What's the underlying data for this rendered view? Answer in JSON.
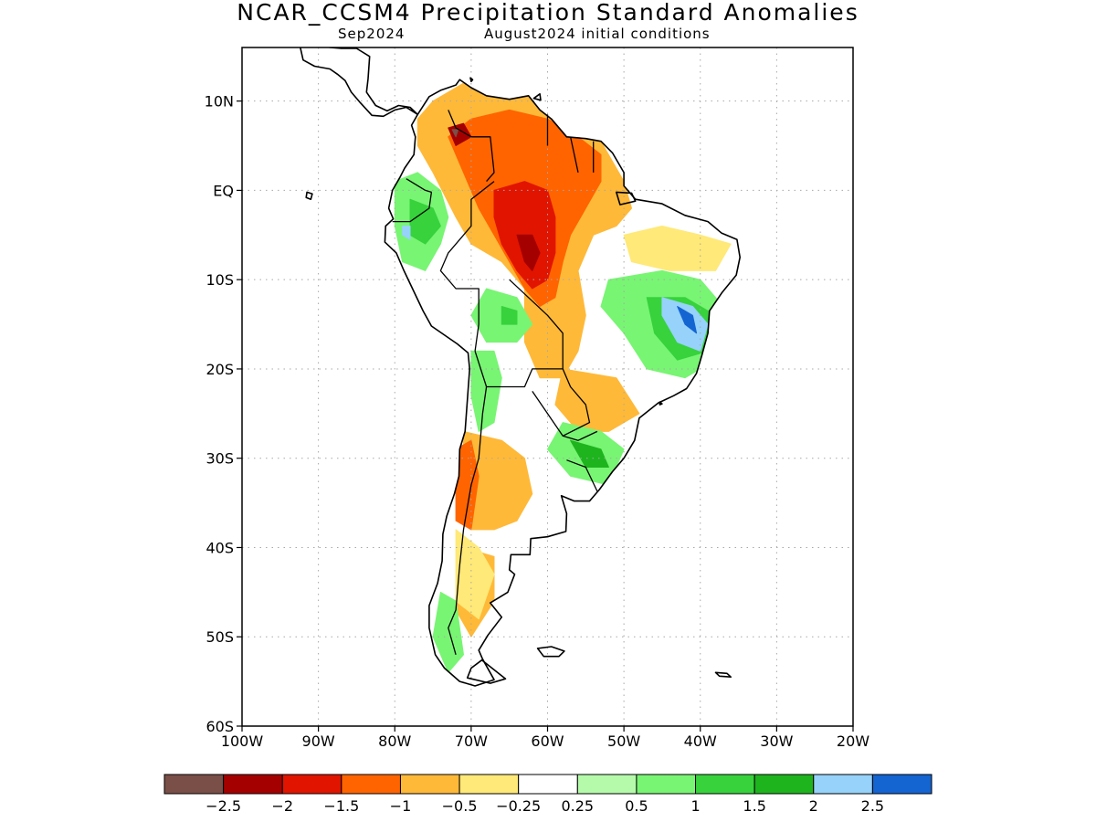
{
  "title": "NCAR_CCSM4 Precipitation Standard Anomalies",
  "subtitle": {
    "left": "Sep2024",
    "right": "August2024 initial conditions"
  },
  "map": {
    "lon_range": [
      -100,
      -20
    ],
    "lat_range": [
      -60,
      16
    ],
    "lat_labels": [
      {
        "lat": 10,
        "text": "10N"
      },
      {
        "lat": 0,
        "text": "EQ"
      },
      {
        "lat": -10,
        "text": "10S"
      },
      {
        "lat": -20,
        "text": "20S"
      },
      {
        "lat": -30,
        "text": "30S"
      },
      {
        "lat": -40,
        "text": "40S"
      },
      {
        "lat": -50,
        "text": "50S"
      },
      {
        "lat": -60,
        "text": "60S"
      }
    ],
    "lon_labels": [
      {
        "lon": -100,
        "text": "100W"
      },
      {
        "lon": -90,
        "text": "90W"
      },
      {
        "lon": -80,
        "text": "80W"
      },
      {
        "lon": -70,
        "text": "70W"
      },
      {
        "lon": -60,
        "text": "60W"
      },
      {
        "lon": -50,
        "text": "50W"
      },
      {
        "lon": -40,
        "text": "40W"
      },
      {
        "lon": -30,
        "text": "30W"
      },
      {
        "lon": -20,
        "text": "20W"
      }
    ],
    "anomaly_regions": [
      {
        "name": "northern-dry",
        "color": "#ffb938",
        "poly": [
          [
            -73,
            11
          ],
          [
            -71,
            12
          ],
          [
            -66,
            11
          ],
          [
            -62,
            10.5
          ],
          [
            -57,
            8
          ],
          [
            -53,
            5.5
          ],
          [
            -50,
            1
          ],
          [
            -49,
            -2
          ],
          [
            -51,
            -4
          ],
          [
            -54,
            -5
          ],
          [
            -56,
            -9
          ],
          [
            -55,
            -14
          ],
          [
            -56,
            -18
          ],
          [
            -58,
            -21
          ],
          [
            -61,
            -21
          ],
          [
            -63,
            -17
          ],
          [
            -63,
            -11
          ],
          [
            -66,
            -8
          ],
          [
            -70,
            -6
          ],
          [
            -72,
            -3
          ],
          [
            -75,
            2
          ],
          [
            -77,
            5
          ],
          [
            -77,
            8
          ],
          [
            -75,
            10
          ]
        ]
      },
      {
        "name": "northern-strong-dry",
        "color": "#ff6400",
        "poly": [
          [
            -70,
            8
          ],
          [
            -65,
            9
          ],
          [
            -60,
            8
          ],
          [
            -56,
            6
          ],
          [
            -53,
            4
          ],
          [
            -53,
            1
          ],
          [
            -55,
            -2
          ],
          [
            -57,
            -5
          ],
          [
            -58,
            -8
          ],
          [
            -59,
            -12
          ],
          [
            -61,
            -13
          ],
          [
            -63,
            -11
          ],
          [
            -65,
            -8
          ],
          [
            -67,
            -5
          ],
          [
            -69,
            -2
          ],
          [
            -71,
            2
          ],
          [
            -73,
            6
          ]
        ]
      },
      {
        "name": "amazon-core-dry",
        "color": "#e11400",
        "poly": [
          [
            -67,
            0
          ],
          [
            -63,
            1
          ],
          [
            -60,
            0
          ],
          [
            -59,
            -3
          ],
          [
            -59,
            -7
          ],
          [
            -60,
            -10
          ],
          [
            -62,
            -11
          ],
          [
            -64,
            -9
          ],
          [
            -66,
            -6
          ],
          [
            -67,
            -3
          ]
        ]
      },
      {
        "name": "amazon-extreme-dry",
        "color": "#a50000",
        "poly": [
          [
            -64,
            -5
          ],
          [
            -62,
            -5
          ],
          [
            -61,
            -7
          ],
          [
            -62,
            -9
          ],
          [
            -63,
            -8
          ]
        ]
      },
      {
        "name": "venezuela-extreme-dry",
        "color": "#a50000",
        "poly": [
          [
            -73,
            7
          ],
          [
            -71,
            7.5
          ],
          [
            -70,
            6
          ],
          [
            -72,
            5
          ]
        ]
      },
      {
        "name": "venezuela-core",
        "color": "#7a4f48",
        "poly": [
          [
            -72.5,
            6.8
          ],
          [
            -71.7,
            6.8
          ],
          [
            -72,
            6
          ]
        ]
      },
      {
        "name": "ne-brazil-light-dry",
        "color": "#ffe978",
        "poly": [
          [
            -50,
            -5
          ],
          [
            -45,
            -4
          ],
          [
            -40,
            -5
          ],
          [
            -36,
            -6
          ],
          [
            -38,
            -9
          ],
          [
            -44,
            -9
          ],
          [
            -49,
            -8
          ]
        ]
      },
      {
        "name": "ecuador-peru-wet",
        "color": "#78f573",
        "poly": [
          [
            -80,
            1
          ],
          [
            -77,
            2
          ],
          [
            -74,
            0
          ],
          [
            -73,
            -3
          ],
          [
            -74,
            -6
          ],
          [
            -76,
            -9
          ],
          [
            -79,
            -8
          ],
          [
            -80,
            -4
          ]
        ]
      },
      {
        "name": "ecuador-peru-strong-wet",
        "color": "#37d23c",
        "poly": [
          [
            -78,
            -1
          ],
          [
            -75,
            -2
          ],
          [
            -74,
            -4
          ],
          [
            -76,
            -6
          ],
          [
            -78,
            -5
          ]
        ]
      },
      {
        "name": "ecuador-peru-blue",
        "color": "#96d2fa",
        "poly": [
          [
            -79,
            -4
          ],
          [
            -78,
            -4
          ],
          [
            -78,
            -5.5
          ],
          [
            -79,
            -5
          ]
        ]
      },
      {
        "name": "bolivia-wet",
        "color": "#78f573",
        "poly": [
          [
            -68,
            -11
          ],
          [
            -64,
            -12
          ],
          [
            -62,
            -15
          ],
          [
            -64,
            -17
          ],
          [
            -68,
            -17
          ],
          [
            -70,
            -14
          ]
        ]
      },
      {
        "name": "bolivia-strong-wet",
        "color": "#37d23c",
        "poly": [
          [
            -66,
            -13
          ],
          [
            -64,
            -13.5
          ],
          [
            -64,
            -15
          ],
          [
            -66,
            -15
          ]
        ]
      },
      {
        "name": "east-brazil-wet",
        "color": "#78f573",
        "poly": [
          [
            -52,
            -10
          ],
          [
            -45,
            -9
          ],
          [
            -40,
            -10
          ],
          [
            -37,
            -13
          ],
          [
            -38,
            -19
          ],
          [
            -42,
            -21
          ],
          [
            -47,
            -20
          ],
          [
            -50,
            -16
          ],
          [
            -53,
            -13
          ]
        ]
      },
      {
        "name": "east-brazil-strong-wet",
        "color": "#37d23c",
        "poly": [
          [
            -47,
            -12
          ],
          [
            -42,
            -12
          ],
          [
            -38,
            -14
          ],
          [
            -39,
            -18
          ],
          [
            -43,
            -19
          ],
          [
            -46,
            -16
          ]
        ]
      },
      {
        "name": "east-brazil-blue",
        "color": "#96d2fa",
        "poly": [
          [
            -45,
            -12
          ],
          [
            -41,
            -13
          ],
          [
            -39,
            -15
          ],
          [
            -40,
            -18
          ],
          [
            -43,
            -17
          ],
          [
            -45,
            -14
          ]
        ]
      },
      {
        "name": "east-brazil-deep-blue",
        "color": "#1464d2",
        "poly": [
          [
            -43,
            -13
          ],
          [
            -41,
            -14
          ],
          [
            -40.5,
            -16
          ],
          [
            -42,
            -15
          ]
        ]
      },
      {
        "name": "central-brazil-dry",
        "color": "#ffb938",
        "poly": [
          [
            -58,
            -20
          ],
          [
            -51,
            -21
          ],
          [
            -48,
            -25
          ],
          [
            -52,
            -27
          ],
          [
            -56,
            -27
          ],
          [
            -59,
            -24
          ]
        ]
      },
      {
        "name": "uruguay-wet",
        "color": "#78f573",
        "poly": [
          [
            -58,
            -26
          ],
          [
            -53,
            -27
          ],
          [
            -50,
            -29
          ],
          [
            -52,
            -33
          ],
          [
            -57,
            -32
          ],
          [
            -60,
            -29
          ]
        ]
      },
      {
        "name": "uruguay-strong-wet",
        "color": "#1eb41e",
        "poly": [
          [
            -57,
            -28
          ],
          [
            -53,
            -29
          ],
          [
            -52,
            -31
          ],
          [
            -55,
            -31
          ]
        ]
      },
      {
        "name": "andes-wet",
        "color": "#78f573",
        "poly": [
          [
            -70,
            -18
          ],
          [
            -67,
            -18
          ],
          [
            -66,
            -21
          ],
          [
            -67,
            -26
          ],
          [
            -69,
            -27
          ],
          [
            -70,
            -23
          ]
        ]
      },
      {
        "name": "argentina-dry",
        "color": "#ffb938",
        "poly": [
          [
            -71,
            -27
          ],
          [
            -66,
            -28
          ],
          [
            -63,
            -30
          ],
          [
            -62,
            -34
          ],
          [
            -64,
            -37
          ],
          [
            -67,
            -38
          ],
          [
            -70,
            -38
          ],
          [
            -71,
            -33
          ]
        ]
      },
      {
        "name": "chile-strong-dry",
        "color": "#ff6400",
        "poly": [
          [
            -72,
            -29
          ],
          [
            -70,
            -28
          ],
          [
            -69,
            -32
          ],
          [
            -70,
            -38
          ],
          [
            -72,
            -37
          ]
        ]
      },
      {
        "name": "patagonia-dry",
        "color": "#ffb938",
        "poly": [
          [
            -71,
            -40
          ],
          [
            -67,
            -41
          ],
          [
            -67,
            -46
          ],
          [
            -70,
            -50
          ],
          [
            -72,
            -47
          ]
        ]
      },
      {
        "name": "patagonia-light-dry",
        "color": "#ffe978",
        "poly": [
          [
            -72,
            -38
          ],
          [
            -69,
            -40
          ],
          [
            -67,
            -43
          ],
          [
            -69,
            -48
          ],
          [
            -72,
            -46
          ]
        ]
      },
      {
        "name": "south-chile-wet",
        "color": "#78f573",
        "poly": [
          [
            -74,
            -45
          ],
          [
            -72,
            -46
          ],
          [
            -71,
            -52
          ],
          [
            -73,
            -54
          ],
          [
            -75,
            -50
          ]
        ]
      }
    ]
  },
  "colorbar": {
    "colors": [
      "#7a4f48",
      "#a50000",
      "#e11400",
      "#ff6400",
      "#ffb938",
      "#ffe978",
      "#ffffff",
      "#b4faaa",
      "#78f573",
      "#37d23c",
      "#1eb41e",
      "#96d2fa",
      "#1464d2"
    ],
    "labels": [
      "−2.5",
      "−2",
      "−1.5",
      "−1",
      "−0.5",
      "−0.25",
      "0.25",
      "0.5",
      "1",
      "1.5",
      "2",
      "2.5"
    ]
  }
}
